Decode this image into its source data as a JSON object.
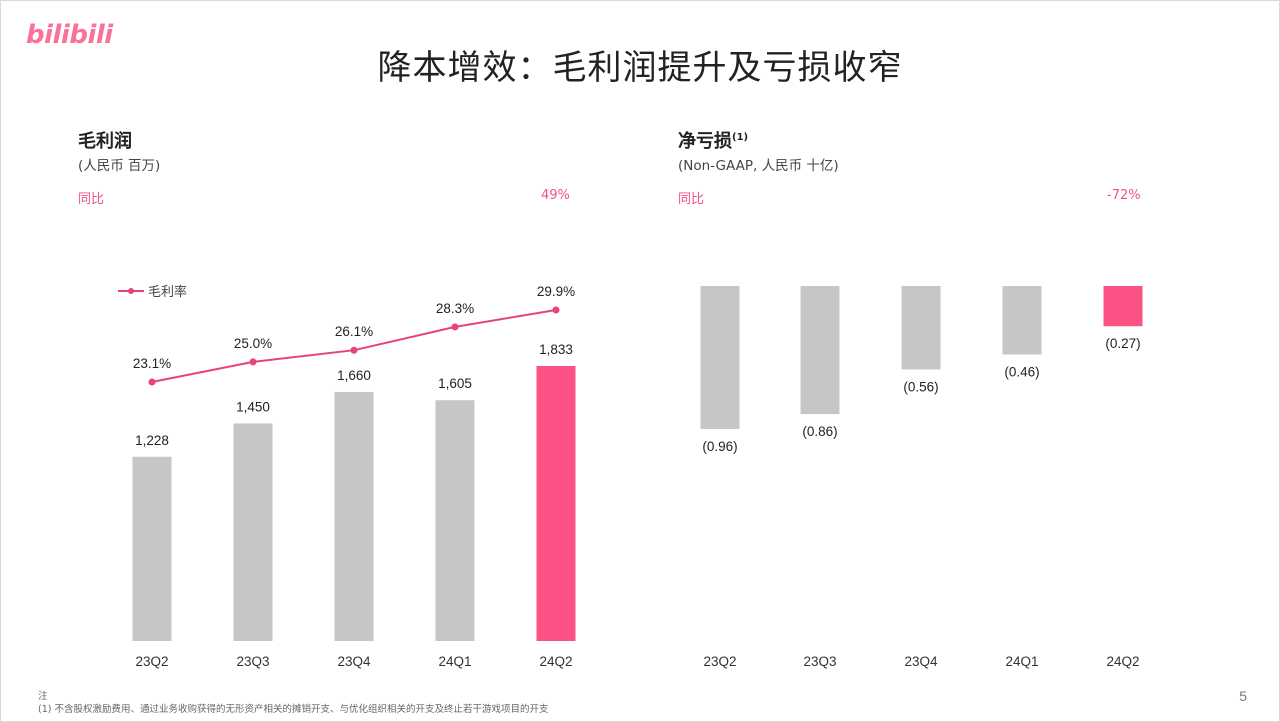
{
  "logo": "bilibili",
  "title": "降本增效：毛利润提升及亏损收窄",
  "colors": {
    "gray_bar": "#c6c6c6",
    "pink": "#fb5185",
    "line": "#e8427a"
  },
  "chart_data": [
    {
      "type": "bar",
      "title": "毛利润",
      "subtitle": "(人民币 百万)",
      "yoy_label": "同比",
      "yoy_value": "49%",
      "categories": [
        "23Q2",
        "23Q3",
        "23Q4",
        "24Q1",
        "24Q2"
      ],
      "values": [
        1228,
        1450,
        1660,
        1605,
        1833
      ],
      "value_labels": [
        "1,228",
        "1,450",
        "1,660",
        "1,605",
        "1,833"
      ],
      "highlight_index": 4,
      "ylim": [
        0,
        1833
      ],
      "line_series": {
        "name": "毛利率",
        "values": [
          23.1,
          25.0,
          26.1,
          28.3,
          29.9
        ],
        "labels": [
          "23.1%",
          "25.0%",
          "26.1%",
          "28.3%",
          "29.9%"
        ]
      },
      "legend_position": "top-left"
    },
    {
      "type": "bar",
      "title": "净亏损",
      "title_note": "(1)",
      "subtitle": "(Non-GAAP, 人民币 十亿)",
      "yoy_label": "同比",
      "yoy_value": "-72%",
      "categories": [
        "23Q2",
        "23Q3",
        "23Q4",
        "24Q1",
        "24Q2"
      ],
      "values": [
        -0.96,
        -0.86,
        -0.56,
        -0.46,
        -0.27
      ],
      "value_labels": [
        "(0.96)",
        "(0.86)",
        "(0.56)",
        "(0.46)",
        "(0.27)"
      ],
      "highlight_index": 4,
      "ylim": [
        -0.96,
        0
      ]
    }
  ],
  "footnote": {
    "heading": "注",
    "items": [
      "(1)    不含股权激励费用、通过业务收购获得的无形资产相关的摊销开支、与优化组织相关的开支及终止若干游戏项目的开支"
    ]
  },
  "page_number": "5"
}
